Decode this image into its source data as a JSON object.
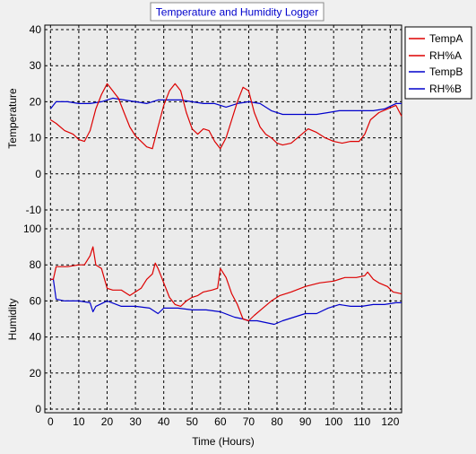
{
  "window": {
    "title": "Temperature and Humidity Logger"
  },
  "colors": {
    "window_bg": "#f0f0f0",
    "plot_bg": "#ebebeb",
    "grid": "#000000",
    "title_text": "#0000cc",
    "temp_a": "#dd0000",
    "rh_a": "#dd0000",
    "temp_b": "#0000cc",
    "rh_b": "#0000cc"
  },
  "chart_data": [
    {
      "type": "line",
      "title": "Temperature and Humidity Logger",
      "xlabel": "",
      "ylabel": "Temperature",
      "xlim": [
        -2,
        124
      ],
      "ylim": [
        -10,
        40
      ],
      "yticks": [
        "-10",
        "0",
        "10",
        "20",
        "30",
        "40"
      ],
      "grid": true,
      "legend_position": "right",
      "series": [
        {
          "name": "TempA",
          "color": "#dd0000",
          "x": [
            0,
            2,
            5,
            8,
            10,
            12,
            14,
            16,
            18,
            20,
            22,
            24,
            26,
            28,
            30,
            32,
            34,
            36,
            38,
            40,
            42,
            44,
            46,
            48,
            50,
            52,
            54,
            56,
            58,
            60,
            62,
            64,
            66,
            68,
            70,
            72,
            74,
            76,
            78,
            80,
            82,
            85,
            88,
            91,
            94,
            97,
            100,
            103,
            106,
            109,
            111,
            113,
            116,
            119,
            122,
            124
          ],
          "y": [
            15,
            14,
            12,
            11,
            9.5,
            9,
            12,
            18,
            22,
            25,
            23,
            21,
            17,
            13,
            10.5,
            9,
            7.5,
            7,
            13,
            19,
            23,
            25,
            23,
            17,
            12.5,
            11,
            12.5,
            12,
            9,
            7,
            10,
            15,
            20,
            24,
            23,
            17,
            13,
            11,
            10,
            8.5,
            8,
            8.5,
            10.5,
            12.5,
            11.5,
            10,
            9,
            8.5,
            9,
            9,
            11,
            15,
            17,
            18,
            19,
            16
          ]
        },
        {
          "name": "TempB",
          "color": "#0000cc",
          "x": [
            0,
            2,
            6,
            10,
            14,
            18,
            22,
            26,
            30,
            34,
            38,
            42,
            46,
            50,
            54,
            58,
            62,
            66,
            70,
            74,
            78,
            82,
            86,
            90,
            94,
            98,
            102,
            106,
            110,
            114,
            118,
            122,
            124
          ],
          "y": [
            18,
            20,
            20,
            19.5,
            19.5,
            20,
            21,
            20.5,
            20,
            19.5,
            20.5,
            20.5,
            20.5,
            20,
            19.5,
            19.5,
            18.5,
            19.5,
            20,
            19.5,
            17.5,
            16.5,
            16.5,
            16.5,
            16.5,
            17,
            17.5,
            17.5,
            17.5,
            17.5,
            18,
            19.5,
            19.5
          ]
        }
      ]
    },
    {
      "type": "line",
      "xlabel": "Time (Hours)",
      "ylabel": "Humidity",
      "xlim": [
        -2,
        124
      ],
      "ylim": [
        0,
        100
      ],
      "xticks": [
        "0",
        "10",
        "20",
        "30",
        "40",
        "50",
        "60",
        "70",
        "80",
        "90",
        "100",
        "110",
        "120"
      ],
      "yticks": [
        "0",
        "20",
        "40",
        "60",
        "80",
        "100"
      ],
      "grid": true,
      "series": [
        {
          "name": "RH%A",
          "color": "#dd0000",
          "x": [
            0,
            1,
            2,
            6,
            10,
            12,
            14,
            15,
            16,
            18,
            20,
            22,
            25,
            28,
            32,
            34,
            36,
            37,
            38,
            40,
            42,
            44,
            46,
            48,
            50,
            52,
            54,
            57,
            59,
            60,
            62,
            64,
            66,
            68,
            70,
            72,
            75,
            78,
            81,
            85,
            90,
            95,
            100,
            104,
            108,
            111,
            112,
            114,
            116,
            119,
            121,
            124
          ],
          "y": [
            72,
            72,
            79,
            79,
            80,
            80,
            85,
            90,
            80,
            78,
            67,
            66,
            66,
            63,
            67,
            72,
            75,
            81,
            78,
            70,
            62,
            58,
            57,
            60,
            62,
            63,
            65,
            66,
            67,
            78,
            73,
            64,
            58,
            50,
            49,
            52,
            56,
            60,
            63,
            65,
            68,
            70,
            71,
            73,
            73,
            74,
            76,
            72,
            70,
            68,
            65,
            64
          ]
        },
        {
          "name": "RH%B",
          "color": "#0000cc",
          "x": [
            0,
            1,
            2,
            5,
            10,
            14,
            15,
            16,
            20,
            25,
            30,
            35,
            38,
            40,
            45,
            50,
            55,
            60,
            65,
            68,
            70,
            73,
            76,
            79,
            82,
            86,
            90,
            94,
            98,
            102,
            106,
            110,
            114,
            118,
            122,
            124
          ],
          "y": [
            72,
            72,
            61,
            60,
            60,
            59,
            54,
            57,
            60,
            57,
            57,
            56,
            53,
            56,
            56,
            55,
            55,
            54,
            51,
            50,
            49,
            49,
            48,
            47,
            49,
            51,
            53,
            53,
            56,
            58,
            57,
            57,
            58,
            58,
            59,
            59
          ]
        }
      ]
    }
  ]
}
